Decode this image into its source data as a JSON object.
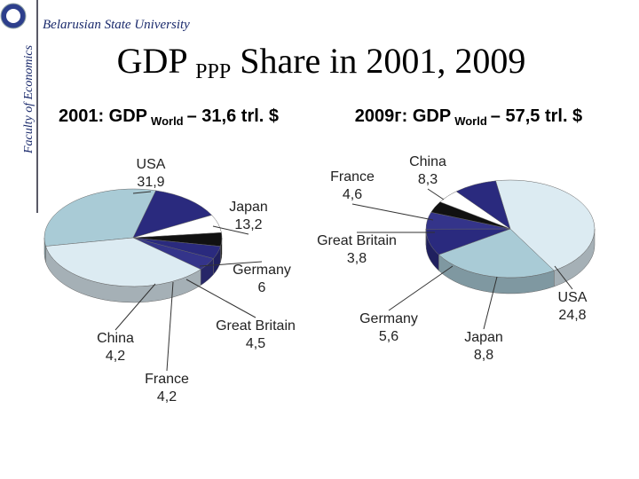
{
  "header": {
    "university": "Belarusian State University",
    "faculty": "Faculty of Economics",
    "title": {
      "main": "GDP",
      "sub": "PPP",
      "rest": "Share in 2001, 2009"
    }
  },
  "chart_data": [
    {
      "type": "pie",
      "title": {
        "lead": "2001: GDP",
        "sub": "World",
        "tail": "– 31,6 trl. $"
      },
      "categories": [
        "USA",
        "Japan",
        "Germany",
        "Great Britain",
        "France",
        "China",
        null
      ],
      "values": [
        31.9,
        13.2,
        6,
        4.5,
        4.2,
        4.2,
        36
      ],
      "value_labels": [
        "31,9",
        "13,2",
        "6",
        "4,5",
        "4,2",
        "4,2",
        null
      ],
      "colors": [
        "#a9cbd6",
        "#2a2a7e",
        "#ffffff",
        "#111111",
        "#2a2a7e",
        "#34348a",
        "#dcebf2"
      ]
    },
    {
      "type": "pie",
      "title": {
        "lead": "2009г: GDP",
        "sub": "World",
        "tail": "– 57,5 trl. $"
      },
      "categories": [
        null,
        "USA",
        "Japan",
        "Germany",
        "Great Britain",
        "France",
        "China"
      ],
      "values": [
        44.1,
        24.8,
        8.8,
        5.6,
        3.8,
        4.6,
        8.3
      ],
      "value_labels": [
        null,
        "24,8",
        "8,8",
        "5,6",
        "3,8",
        "4,6",
        "8,3"
      ],
      "colors": [
        "#dcebf2",
        "#a9cbd6",
        "#2a2a7e",
        "#34348a",
        "#111111",
        "#ffffff",
        "#2a2a7e"
      ]
    }
  ]
}
